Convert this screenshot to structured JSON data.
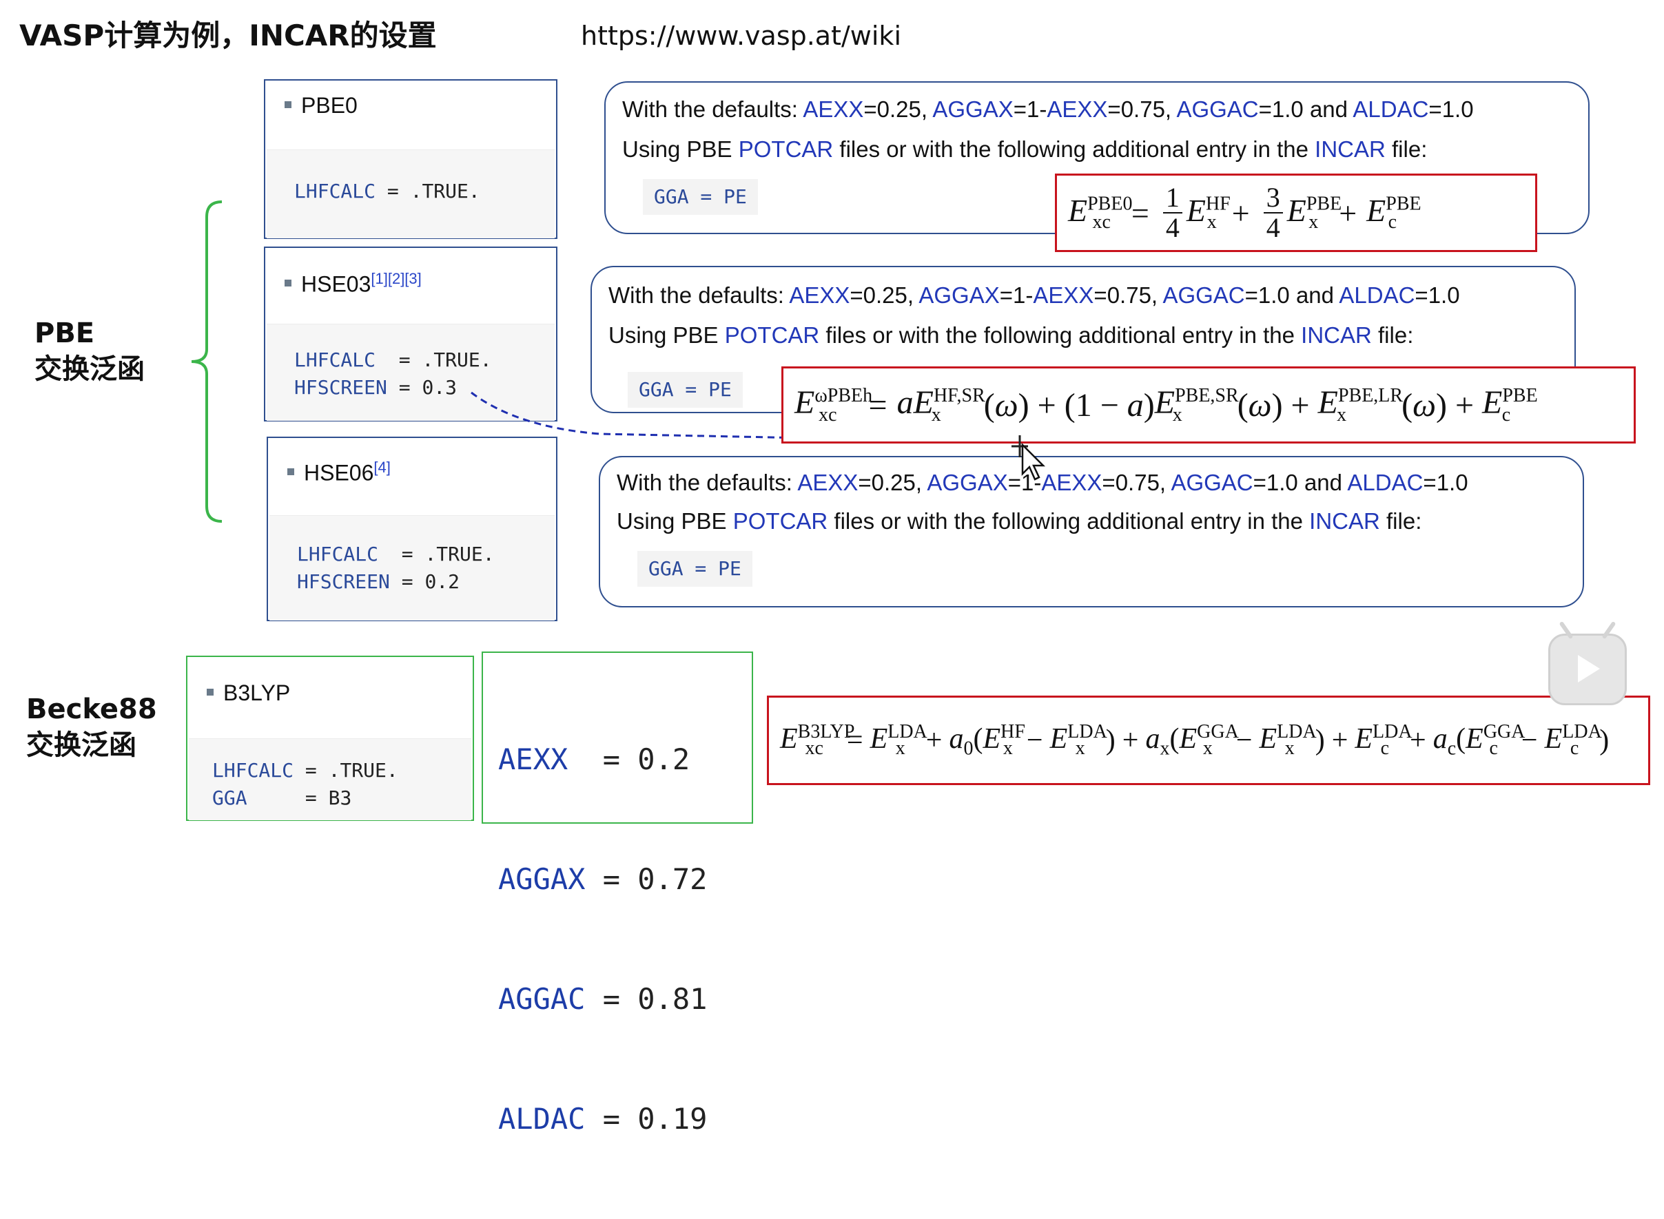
{
  "title": "VASP计算为例，INCAR的设置",
  "url": "https://www.vasp.at/wiki",
  "side_labels": {
    "pbe": "PBE",
    "pbe_sub": "交换泛函",
    "becke": "Becke88",
    "becke_sub": "交换泛函"
  },
  "methods": {
    "pbe0": {
      "name": "PBE0",
      "refs": "",
      "code": [
        [
          "LHFCALC",
          " = ",
          ".TRUE."
        ]
      ]
    },
    "hse03": {
      "name": "HSE03",
      "refs": "[1][2][3]",
      "code": [
        [
          "LHFCALC ",
          " = ",
          ".TRUE."
        ],
        [
          "HFSCREEN",
          " = ",
          "0.3"
        ]
      ]
    },
    "hse06": {
      "name": "HSE06",
      "refs": "[4]",
      "code": [
        [
          "LHFCALC ",
          " = ",
          ".TRUE."
        ],
        [
          "HFSCREEN",
          " = ",
          "0.2"
        ]
      ]
    },
    "b3lyp": {
      "name": "B3LYP",
      "code": [
        [
          "LHFCALC",
          " = ",
          ".TRUE."
        ],
        [
          "GGA    ",
          " = ",
          "B3"
        ]
      ]
    }
  },
  "defaults": {
    "prefix": "With the defaults: ",
    "aexx": "AEXX",
    "aexx_val": "=0.25, ",
    "aggax": "AGGAX",
    "aggax_val": "=1-",
    "aexx2": "AEXX",
    "aggax_val2": "=0.75, ",
    "aggac": "AGGAC",
    "aggac_val": "=1.0 and ",
    "aldac": "ALDAC",
    "aldac_val": "=1.0",
    "using_a": "Using PBE ",
    "potcar": "POTCAR",
    "using_b": " files or with the following additional entry in the ",
    "incar": "INCAR",
    "using_c": " file:",
    "gga_line": "GGA = PE"
  },
  "b3lyp_params": [
    {
      "key": "AEXX ",
      "eq": " = ",
      "val": "0.2"
    },
    {
      "key": "AGGAX",
      "eq": " = ",
      "val": "0.72"
    },
    {
      "key": "AGGAC",
      "eq": " = ",
      "val": "0.81"
    },
    {
      "key": "ALDAC",
      "eq": " = ",
      "val": "0.19"
    }
  ],
  "formulas": {
    "pbe0": "E_xc^PBE0 = 1/4 E_x^HF + 3/4 E_x^PBE + E_c^PBE",
    "hse": "E_xc^ωPBEh = aE_x^HF,SR(ω) + (1 − a)E_x^PBE,SR(ω) + E_x^PBE,LR(ω) + E_c^PBE",
    "b3lyp": "E_xc^B3LYP = E_x^LDA + a0(E_x^HF − E_x^LDA) + ax(E_x^GGA − E_x^LDA) + E_c^LDA + ac(E_c^GGA − E_c^LDA)"
  },
  "colors": {
    "link": "#2238b8",
    "box_border": "#2f4f8f",
    "green": "#3bb54a",
    "red": "#c8141e",
    "dash": "#1f2fb0"
  },
  "icons": [
    "bullet-icon",
    "cursor-icon",
    "play-icon"
  ]
}
